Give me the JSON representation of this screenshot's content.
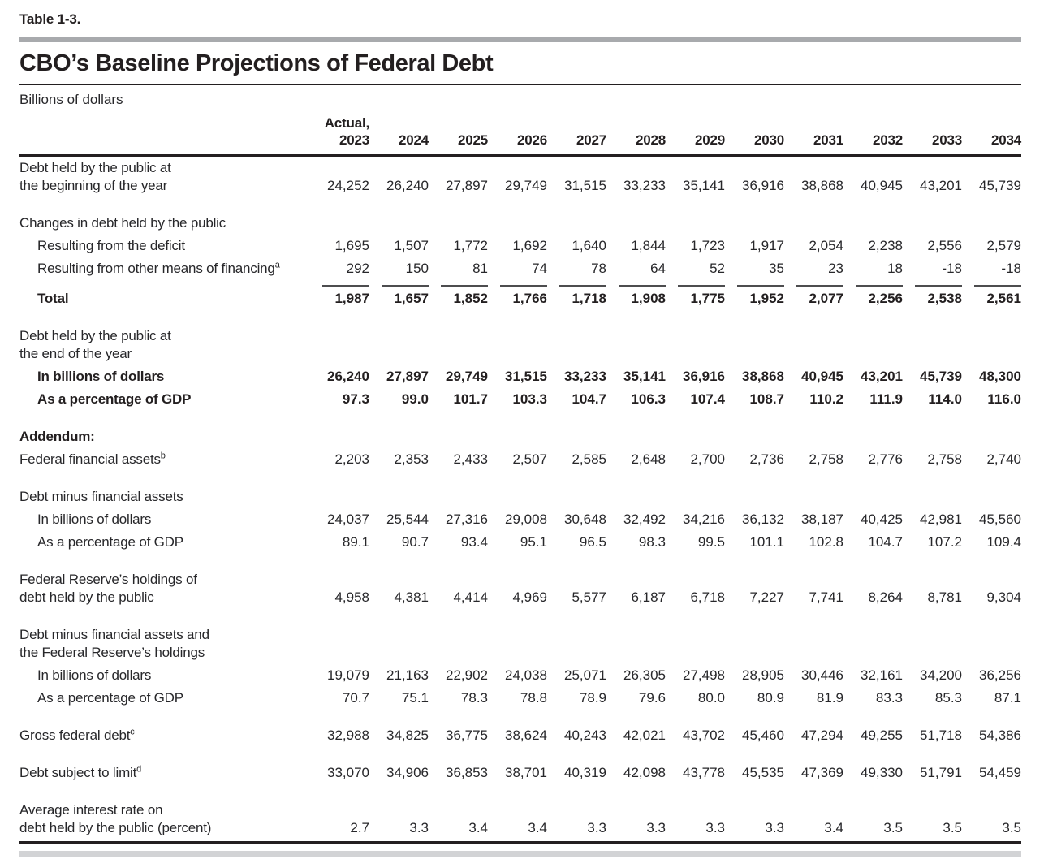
{
  "table_label": "Table 1-3.",
  "title": "CBO’s Baseline Projections of Federal Debt",
  "subtitle": "Billions of dollars",
  "header": {
    "actual_line": "Actual,",
    "years": [
      "2023",
      "2024",
      "2025",
      "2026",
      "2027",
      "2028",
      "2029",
      "2030",
      "2031",
      "2032",
      "2033",
      "2034"
    ]
  },
  "rows": [
    {
      "kind": "data",
      "label_lines": [
        "Debt held by the public at",
        "the beginning of the year"
      ],
      "values": [
        "24,252",
        "26,240",
        "27,897",
        "29,749",
        "31,515",
        "33,233",
        "35,141",
        "36,916",
        "38,868",
        "40,945",
        "43,201",
        "45,739"
      ]
    },
    {
      "kind": "spacer"
    },
    {
      "kind": "section",
      "label_lines": [
        "Changes in debt held by the public"
      ]
    },
    {
      "kind": "data",
      "indent": 1,
      "label_lines": [
        "Resulting from the deficit"
      ],
      "values": [
        "1,695",
        "1,507",
        "1,772",
        "1,692",
        "1,640",
        "1,844",
        "1,723",
        "1,917",
        "2,054",
        "2,238",
        "2,556",
        "2,579"
      ]
    },
    {
      "kind": "data",
      "indent": 1,
      "label_lines": [
        "Resulting from other means of financing"
      ],
      "sup": "a",
      "values": [
        "292",
        "150",
        "81",
        "74",
        "78",
        "64",
        "52",
        "35",
        "23",
        "18",
        "-18",
        "-18"
      ]
    },
    {
      "kind": "data",
      "indent": 1,
      "bold": true,
      "overline": true,
      "label_lines": [
        "Total"
      ],
      "values": [
        "1,987",
        "1,657",
        "1,852",
        "1,766",
        "1,718",
        "1,908",
        "1,775",
        "1,952",
        "2,077",
        "2,256",
        "2,538",
        "2,561"
      ]
    },
    {
      "kind": "spacer"
    },
    {
      "kind": "section",
      "label_lines": [
        "Debt held by the public at",
        "the end of the year"
      ]
    },
    {
      "kind": "data",
      "indent": 1,
      "bold": true,
      "label_lines": [
        "In billions of dollars"
      ],
      "values": [
        "26,240",
        "27,897",
        "29,749",
        "31,515",
        "33,233",
        "35,141",
        "36,916",
        "38,868",
        "40,945",
        "43,201",
        "45,739",
        "48,300"
      ]
    },
    {
      "kind": "data",
      "indent": 1,
      "bold": true,
      "label_lines": [
        "As a percentage of GDP"
      ],
      "values": [
        "97.3",
        "99.0",
        "101.7",
        "103.3",
        "104.7",
        "106.3",
        "107.4",
        "108.7",
        "110.2",
        "111.9",
        "114.0",
        "116.0"
      ]
    },
    {
      "kind": "spacer"
    },
    {
      "kind": "section",
      "bold": true,
      "label_lines": [
        "Addendum:"
      ]
    },
    {
      "kind": "data",
      "label_lines": [
        "Federal financial assets"
      ],
      "sup": "b",
      "values": [
        "2,203",
        "2,353",
        "2,433",
        "2,507",
        "2,585",
        "2,648",
        "2,700",
        "2,736",
        "2,758",
        "2,776",
        "2,758",
        "2,740"
      ]
    },
    {
      "kind": "spacer"
    },
    {
      "kind": "section",
      "label_lines": [
        "Debt minus financial assets"
      ]
    },
    {
      "kind": "data",
      "indent": 1,
      "label_lines": [
        "In billions of dollars"
      ],
      "values": [
        "24,037",
        "25,544",
        "27,316",
        "29,008",
        "30,648",
        "32,492",
        "34,216",
        "36,132",
        "38,187",
        "40,425",
        "42,981",
        "45,560"
      ]
    },
    {
      "kind": "data",
      "indent": 1,
      "label_lines": [
        "As a percentage of GDP"
      ],
      "values": [
        "89.1",
        "90.7",
        "93.4",
        "95.1",
        "96.5",
        "98.3",
        "99.5",
        "101.1",
        "102.8",
        "104.7",
        "107.2",
        "109.4"
      ]
    },
    {
      "kind": "spacer"
    },
    {
      "kind": "data",
      "label_lines": [
        "Federal Reserve’s holdings of",
        "debt held by the public"
      ],
      "values": [
        "4,958",
        "4,381",
        "4,414",
        "4,969",
        "5,577",
        "6,187",
        "6,718",
        "7,227",
        "7,741",
        "8,264",
        "8,781",
        "9,304"
      ]
    },
    {
      "kind": "spacer"
    },
    {
      "kind": "section",
      "label_lines": [
        "Debt minus financial assets and",
        "the Federal Reserve’s holdings"
      ]
    },
    {
      "kind": "data",
      "indent": 1,
      "label_lines": [
        "In billions of dollars"
      ],
      "values": [
        "19,079",
        "21,163",
        "22,902",
        "24,038",
        "25,071",
        "26,305",
        "27,498",
        "28,905",
        "30,446",
        "32,161",
        "34,200",
        "36,256"
      ]
    },
    {
      "kind": "data",
      "indent": 1,
      "label_lines": [
        "As a percentage of GDP"
      ],
      "values": [
        "70.7",
        "75.1",
        "78.3",
        "78.8",
        "78.9",
        "79.6",
        "80.0",
        "80.9",
        "81.9",
        "83.3",
        "85.3",
        "87.1"
      ]
    },
    {
      "kind": "spacer"
    },
    {
      "kind": "data",
      "label_lines": [
        "Gross federal debt"
      ],
      "sup": "c",
      "values": [
        "32,988",
        "34,825",
        "36,775",
        "38,624",
        "40,243",
        "42,021",
        "43,702",
        "45,460",
        "47,294",
        "49,255",
        "51,718",
        "54,386"
      ]
    },
    {
      "kind": "spacer"
    },
    {
      "kind": "data",
      "label_lines": [
        "Debt subject to limit"
      ],
      "sup": "d",
      "values": [
        "33,070",
        "34,906",
        "36,853",
        "38,701",
        "40,319",
        "42,098",
        "43,778",
        "45,535",
        "47,369",
        "49,330",
        "51,791",
        "54,459"
      ]
    },
    {
      "kind": "spacer"
    },
    {
      "kind": "data",
      "label_lines": [
        "Average interest rate on",
        "debt held by the public (percent)"
      ],
      "values": [
        "2.7",
        "3.3",
        "3.4",
        "3.4",
        "3.3",
        "3.3",
        "3.3",
        "3.3",
        "3.4",
        "3.5",
        "3.5",
        "3.5"
      ]
    }
  ]
}
